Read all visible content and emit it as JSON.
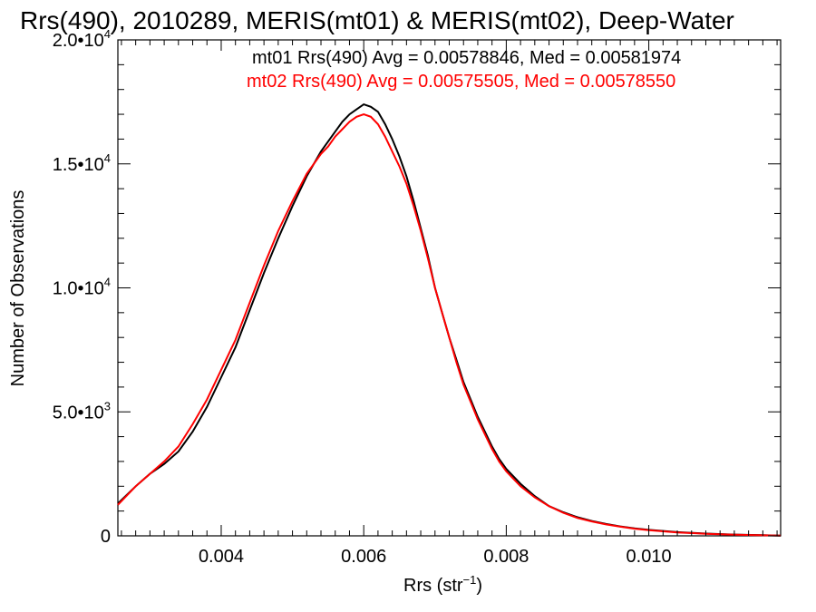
{
  "chart_data": {
    "type": "line",
    "title": "Rrs(490), 2010289, MERIS(mt01) & MERIS(mt02), Deep-Water",
    "xlabel": "Rrs (str",
    "xlabel_sup": "−1",
    "xlabel_end": ")",
    "ylabel": "Number of Observations",
    "xlim": [
      0.00255,
      0.01185
    ],
    "ylim": [
      0,
      20000
    ],
    "x_ticks": [
      {
        "value": 0.004,
        "label": "0.004"
      },
      {
        "value": 0.006,
        "label": "0.006"
      },
      {
        "value": 0.008,
        "label": "0.008"
      },
      {
        "value": 0.01,
        "label": "0.010"
      }
    ],
    "y_ticks": [
      {
        "value": 0,
        "mant": "0",
        "exp": ""
      },
      {
        "value": 5000,
        "mant": "5.0•10",
        "exp": "3"
      },
      {
        "value": 10000,
        "mant": "1.0•10",
        "exp": "4"
      },
      {
        "value": 15000,
        "mant": "1.5•10",
        "exp": "4"
      },
      {
        "value": 20000,
        "mant": "2.0•10",
        "exp": "4"
      }
    ],
    "legend": [
      {
        "text": "mt01 Rrs(490) Avg = 0.00578846, Med = 0.00581974",
        "color": "#000000"
      },
      {
        "text": "mt02 Rrs(490) Avg = 0.00575505, Med = 0.00578550",
        "color": "#ff0000"
      }
    ],
    "series": [
      {
        "color": "#000000",
        "x": [
          0.00255,
          0.0028,
          0.003,
          0.0032,
          0.0034,
          0.0036,
          0.0038,
          0.004,
          0.0042,
          0.0044,
          0.0046,
          0.0048,
          0.005,
          0.0052,
          0.0054,
          0.0055,
          0.0056,
          0.0057,
          0.0058,
          0.0059,
          0.006,
          0.0061,
          0.0062,
          0.0063,
          0.0064,
          0.0065,
          0.0066,
          0.0067,
          0.0068,
          0.0069,
          0.007,
          0.0071,
          0.0072,
          0.0073,
          0.0074,
          0.0075,
          0.0076,
          0.0077,
          0.0078,
          0.0079,
          0.008,
          0.0082,
          0.0084,
          0.0086,
          0.0088,
          0.009,
          0.0092,
          0.0094,
          0.0096,
          0.0098,
          0.01,
          0.0104,
          0.0108,
          0.0112,
          0.0116,
          0.01185
        ],
        "y": [
          1300,
          2000,
          2500,
          2900,
          3400,
          4200,
          5200,
          6400,
          7600,
          9100,
          10600,
          12000,
          13300,
          14500,
          15500,
          15900,
          16300,
          16700,
          17000,
          17200,
          17400,
          17300,
          17100,
          16600,
          16000,
          15300,
          14500,
          13500,
          12400,
          11300,
          10000,
          9000,
          8000,
          7100,
          6200,
          5500,
          4800,
          4200,
          3600,
          3100,
          2700,
          2100,
          1600,
          1200,
          950,
          750,
          600,
          480,
          380,
          300,
          240,
          150,
          90,
          50,
          25,
          10
        ]
      },
      {
        "color": "#ff0000",
        "x": [
          0.00255,
          0.0028,
          0.003,
          0.0032,
          0.0034,
          0.0036,
          0.0038,
          0.004,
          0.0042,
          0.0044,
          0.0046,
          0.0048,
          0.005,
          0.0052,
          0.0054,
          0.0055,
          0.0056,
          0.0057,
          0.0058,
          0.0059,
          0.006,
          0.0061,
          0.0062,
          0.0063,
          0.0064,
          0.0065,
          0.0066,
          0.0067,
          0.0068,
          0.0069,
          0.007,
          0.0071,
          0.0072,
          0.0073,
          0.0074,
          0.0075,
          0.0076,
          0.0077,
          0.0078,
          0.0079,
          0.008,
          0.0082,
          0.0084,
          0.0086,
          0.0088,
          0.009,
          0.0092,
          0.0094,
          0.0096,
          0.0098,
          0.01,
          0.0104,
          0.0108,
          0.0112,
          0.0116,
          0.01185
        ],
        "y": [
          1250,
          2000,
          2500,
          3000,
          3600,
          4500,
          5500,
          6700,
          7900,
          9400,
          10900,
          12300,
          13500,
          14600,
          15400,
          15700,
          16100,
          16400,
          16700,
          16900,
          17000,
          16900,
          16600,
          16100,
          15500,
          14900,
          14200,
          13300,
          12300,
          11200,
          10000,
          9000,
          8000,
          7000,
          6100,
          5400,
          4700,
          4100,
          3500,
          3000,
          2600,
          2000,
          1550,
          1200,
          930,
          720,
          580,
          460,
          370,
          290,
          230,
          140,
          85,
          45,
          22,
          8
        ]
      }
    ]
  }
}
